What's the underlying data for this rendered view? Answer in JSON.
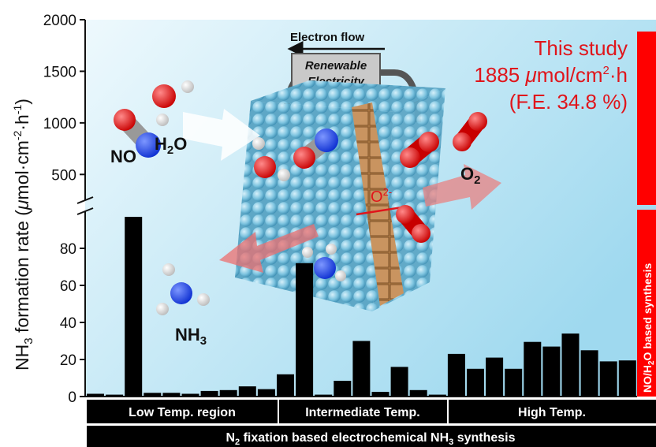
{
  "chart_data": {
    "type": "bar",
    "ylabel": {
      "main": "NH",
      "sub": "3",
      "rest": " formation rate (",
      "mu": "μ",
      "unit_a": "mol·cm",
      "sup1": "-2",
      "unit_b": "·h",
      "sup2": "-1",
      "close": ")"
    },
    "yticks_lower": [
      "0",
      "20",
      "40",
      "60",
      "80"
    ],
    "yticks_upper": [
      "500",
      "1000",
      "1500",
      "2000"
    ],
    "ylim_lower": [
      0,
      100
    ],
    "ylim_upper": [
      250,
      2000
    ],
    "axis_break": true,
    "values": [
      1.5,
      1.0,
      97,
      2,
      2,
      1.5,
      3,
      3.5,
      5.5,
      4,
      12,
      72,
      1,
      8.5,
      30,
      2.5,
      16,
      3.5,
      1,
      23,
      15,
      21,
      15,
      29.5,
      27,
      34,
      25,
      19,
      19.5
    ],
    "highlight": {
      "value": 1885,
      "color": "#ff0000",
      "label_line1": "This study",
      "label_value": "1885 ",
      "label_unit_mu": "μ",
      "label_unit_a": "mol/cm",
      "label_unit_sup": "2",
      "label_unit_b": "·h",
      "label_line3": "(F.E. 34.8 %)"
    },
    "side_label": {
      "pre": "NO/H",
      "sub": "2",
      "post": "O based synthesis"
    },
    "regions": [
      "Low Temp. region",
      "Intermediate Temp.",
      "High Temp."
    ],
    "footer": {
      "pre": "N",
      "sub": "2",
      "mid": " fixation based electrochemical NH",
      "sub2": "3",
      "post": " synthesis"
    },
    "colors": {
      "bars": "#000000",
      "highlight": "#ff0000",
      "background": "#bfe6f5"
    }
  },
  "illustration": {
    "electron_flow": "Electron flow",
    "panel_line1": "Renewable",
    "panel_line2": "Electricity",
    "no_label": "NO",
    "h2o_label": {
      "main": "H",
      "sub": "2",
      "post": "O"
    },
    "o2_label": {
      "main": "O",
      "sub": "2"
    },
    "nh3_label": {
      "main": "NH",
      "sub": "3"
    },
    "ion_label": {
      "main": "O",
      "sup": "2-"
    }
  }
}
